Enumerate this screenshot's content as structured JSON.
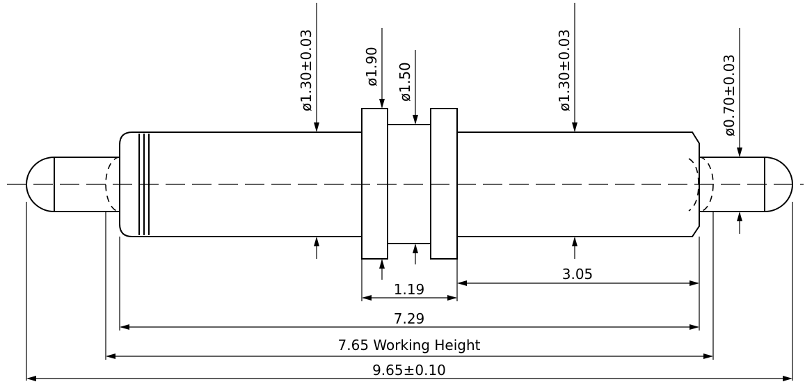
{
  "dimensions": {
    "dia_barrel_left": "ø1.30±0.03",
    "dia_flange": "ø1.90",
    "dia_neck": "ø1.50",
    "dia_barrel_right": "ø1.30±0.03",
    "dia_plunger": "ø0.70±0.03",
    "len_flange": "1.19",
    "len_right": "3.05",
    "len_body": "7.29",
    "working_height": "7.65 Working Height",
    "overall": "9.65±0.10"
  }
}
